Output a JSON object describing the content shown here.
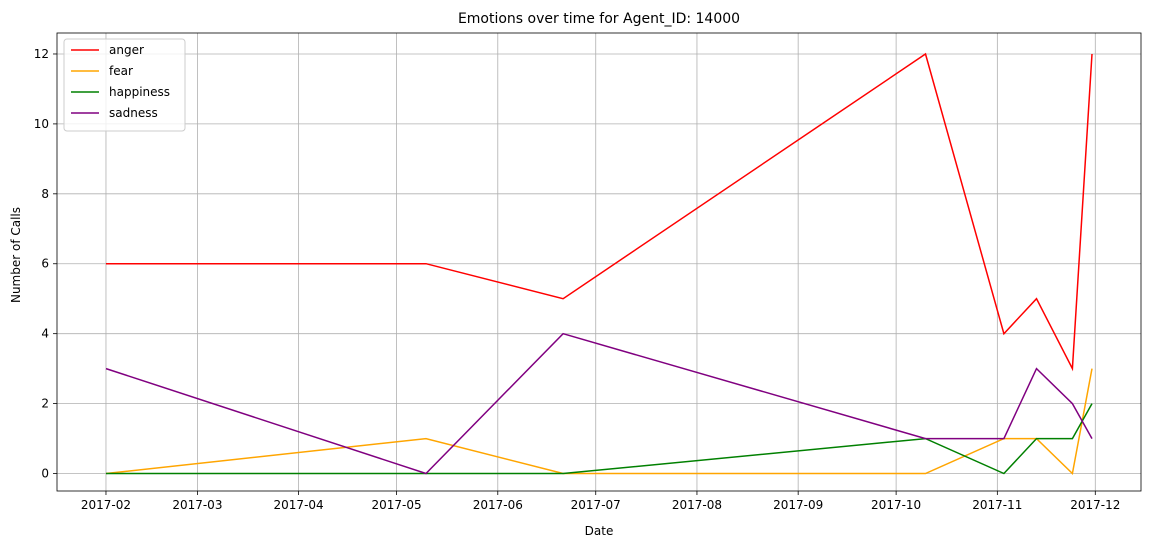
{
  "chart_data": {
    "type": "line",
    "title": "Emotions over time for Agent_ID: 14000",
    "xlabel": "Date",
    "ylabel": "Number of Calls",
    "xlim": [
      "2017-01-17",
      "2017-12-15"
    ],
    "ylim": [
      -0.5,
      12.6
    ],
    "yticks": [
      0,
      2,
      4,
      6,
      8,
      10,
      12
    ],
    "xticks": [
      "2017-02",
      "2017-03",
      "2017-04",
      "2017-05",
      "2017-06",
      "2017-07",
      "2017-08",
      "2017-09",
      "2017-10",
      "2017-11",
      "2017-12"
    ],
    "grid": true,
    "legend_position": "top-left",
    "x": [
      "2017-02-01",
      "2017-05-10",
      "2017-06-21",
      "2017-10-10",
      "2017-11-03",
      "2017-11-13",
      "2017-11-24",
      "2017-11-30"
    ],
    "series": [
      {
        "name": "anger",
        "color": "#ff0000",
        "values": [
          6,
          6,
          5,
          12,
          4,
          5,
          3,
          12
        ]
      },
      {
        "name": "fear",
        "color": "#ffa500",
        "values": [
          0,
          1,
          0,
          0,
          1,
          1,
          0,
          3
        ]
      },
      {
        "name": "happiness",
        "color": "#008000",
        "values": [
          0,
          0,
          0,
          1,
          0,
          1,
          1,
          2
        ]
      },
      {
        "name": "sadness",
        "color": "#800080",
        "values": [
          3,
          0,
          4,
          1,
          1,
          3,
          2,
          1
        ]
      }
    ]
  }
}
